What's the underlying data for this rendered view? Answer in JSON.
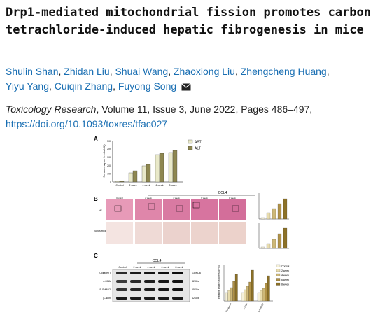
{
  "title": "Drp1-mediated mitochondrial fission promotes carbon tetrachloride-induced hepatic fibrogenesis in mice",
  "authors": [
    "Shulin Shan",
    "Zhidan Liu",
    "Shuai Wang",
    "Zhaoxiong Liu",
    "Zhengcheng Huang",
    "Yiyu Yang",
    "Cuiqin Zhang",
    "Fuyong Song"
  ],
  "journal": {
    "name": "Toxicology Research",
    "details": ", Volume 11, Issue 3, June 2022, Pages 486–497,",
    "doi": "https://doi.org/10.1093/toxres/tfac027"
  },
  "figure": {
    "panel_labels": [
      "A",
      "B",
      "C"
    ],
    "panelA": {
      "ylabel": "Serum enzyme levels(U/L)",
      "yticks": [
        "0",
        "100",
        "200",
        "300",
        "400",
        "500"
      ],
      "categories": [
        "Control",
        "2 week",
        "4 week",
        "6 week",
        "8 week"
      ],
      "legend": [
        "AST",
        "ALT"
      ],
      "colors": {
        "AST": "#e9e9c9",
        "ALT": "#8e8750"
      }
    },
    "panelB": {
      "group_label": "CCL4",
      "columns": [
        "Control",
        "2 week",
        "4 week",
        "6 week",
        "8 week"
      ],
      "rows": [
        "HE",
        "Sirius Red"
      ]
    },
    "panelC": {
      "group_label": "CCL4",
      "columns": [
        "Control",
        "2 week",
        "4 week",
        "6 week",
        "8 week"
      ],
      "proteins": [
        "Collagen I",
        "α-SMA",
        "P-SMAD2",
        "β-actin"
      ],
      "sizes": [
        "130KDa",
        "42KDa",
        "55KDa",
        "42KDa"
      ],
      "chart_ylabel": "Relative protein expression(%)",
      "chart_categories": [
        "Collagen I",
        "α-SMA",
        "p-SMAD2"
      ],
      "legend": [
        "Control",
        "2 week",
        "4 week",
        "6 week",
        "8 week"
      ],
      "colors": [
        "#f6f1d9",
        "#e8dcae",
        "#cdb878",
        "#b09248",
        "#8c7127"
      ]
    }
  }
}
